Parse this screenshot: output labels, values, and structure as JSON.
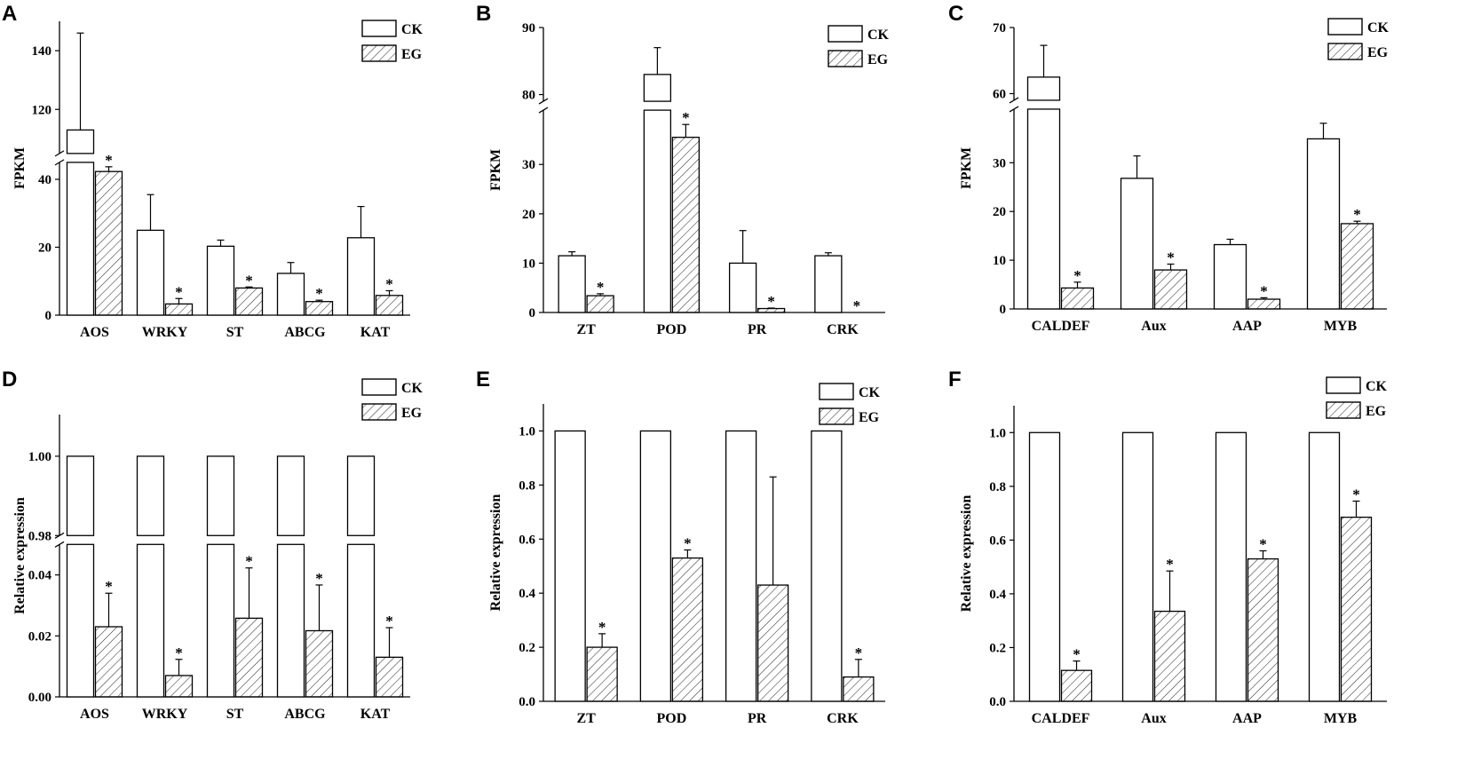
{
  "colors": {
    "ink": "#000000",
    "ck_fill": "#ffffff",
    "eg_hatch": "#222222"
  },
  "legend": {
    "ck": "CK",
    "eg": "EG"
  },
  "chart_data": [
    {
      "panel": "A",
      "type": "bar",
      "ylabel": "FPKM",
      "categories": [
        "AOS",
        "WRKY",
        "ST",
        "ABCG",
        "KAT"
      ],
      "y_break": {
        "lower": [
          0,
          45
        ],
        "upper": [
          105,
          150
        ]
      },
      "y_ticks": [
        0,
        20,
        40,
        120,
        140
      ],
      "y_tick_labels": [
        "0",
        "20",
        "40",
        "120",
        "140"
      ],
      "series": [
        {
          "name": "CK",
          "values": [
            113,
            25,
            20.3,
            12.3,
            22.8
          ],
          "errors": [
            33,
            10.5,
            1.8,
            3.2,
            9.2
          ]
        },
        {
          "name": "EG",
          "values": [
            42.3,
            3.3,
            8,
            4,
            5.8
          ],
          "errors": [
            1.4,
            1.6,
            0.3,
            0.4,
            1.4
          ]
        }
      ],
      "significance": [
        "*",
        "*",
        "*",
        "*",
        "*"
      ]
    },
    {
      "panel": "B",
      "type": "bar",
      "ylabel": "FPKM",
      "categories": [
        "ZT",
        "POD",
        "PR",
        "CRK"
      ],
      "y_break": {
        "lower": [
          0,
          41
        ],
        "upper": [
          79,
          90
        ]
      },
      "y_ticks": [
        0,
        10,
        20,
        30,
        80,
        90
      ],
      "y_tick_labels": [
        "0",
        "10",
        "20",
        "30",
        "80",
        "90"
      ],
      "series": [
        {
          "name": "CK",
          "values": [
            11.5,
            83,
            10,
            11.5
          ],
          "errors": [
            0.8,
            4,
            6.6,
            0.6
          ]
        },
        {
          "name": "EG",
          "values": [
            3.4,
            35.5,
            0.8,
            0
          ],
          "errors": [
            0.4,
            2.6,
            0.1,
            0
          ]
        }
      ],
      "significance": [
        "*",
        "*",
        "*",
        "*"
      ]
    },
    {
      "panel": "C",
      "type": "bar",
      "ylabel": "FPKM",
      "categories": [
        "CALDEF",
        "Aux",
        "AAP",
        "MYB"
      ],
      "y_break": {
        "lower": [
          0,
          41
        ],
        "upper": [
          59,
          70
        ]
      },
      "y_ticks": [
        0,
        10,
        20,
        30,
        60,
        70
      ],
      "y_tick_labels": [
        "0",
        "10",
        "20",
        "30",
        "60",
        "70"
      ],
      "series": [
        {
          "name": "CK",
          "values": [
            62.5,
            26.8,
            13.2,
            34.9
          ],
          "errors": [
            4.8,
            4.6,
            1.1,
            3.2
          ]
        },
        {
          "name": "EG",
          "values": [
            4.3,
            8,
            2,
            17.5
          ],
          "errors": [
            1.2,
            1.2,
            0.3,
            0.5
          ]
        }
      ],
      "significance": [
        "*",
        "*",
        "*",
        "*"
      ]
    },
    {
      "panel": "D",
      "type": "bar",
      "ylabel": "Relative expression",
      "categories": [
        "AOS",
        "WRKY",
        "ST",
        "ABCG",
        "KAT"
      ],
      "y_break": {
        "lower": [
          0,
          0.05
        ],
        "upper": [
          0.98,
          1.0105
        ]
      },
      "y_ticks": [
        0,
        0.02,
        0.04,
        0.98,
        1.0
      ],
      "y_tick_labels": [
        "0.00",
        "0.02",
        "0.04",
        "0.98",
        "1.00"
      ],
      "series": [
        {
          "name": "CK",
          "values": [
            1,
            1,
            1,
            1,
            1
          ],
          "errors": [
            0,
            0,
            0,
            0,
            0
          ]
        },
        {
          "name": "EG",
          "values": [
            0.023,
            0.007,
            0.0258,
            0.0217,
            0.013
          ],
          "errors": [
            0.011,
            0.0053,
            0.0165,
            0.015,
            0.0097
          ]
        }
      ],
      "significance": [
        "*",
        "*",
        "*",
        "*",
        "*"
      ]
    },
    {
      "panel": "E",
      "type": "bar",
      "ylabel": "Relative expression",
      "categories": [
        "ZT",
        "POD",
        "PR",
        "CRK"
      ],
      "ylim": [
        0,
        1.1
      ],
      "y_ticks": [
        0,
        0.2,
        0.4,
        0.6,
        0.8,
        1.0
      ],
      "y_tick_labels": [
        "0.0",
        "0.2",
        "0.4",
        "0.6",
        "0.8",
        "1.0"
      ],
      "series": [
        {
          "name": "CK",
          "values": [
            1,
            1,
            1,
            1
          ],
          "errors": [
            0,
            0,
            0,
            0
          ]
        },
        {
          "name": "EG",
          "values": [
            0.2,
            0.53,
            0.43,
            0.09
          ],
          "errors": [
            0.05,
            0.03,
            0.4,
            0.065
          ]
        }
      ],
      "significance": [
        "*",
        "*",
        "",
        "*"
      ]
    },
    {
      "panel": "F",
      "type": "bar",
      "ylabel": "Relative expression",
      "categories": [
        "CALDEF",
        "Aux",
        "AAP",
        "MYB"
      ],
      "ylim": [
        0,
        1.1
      ],
      "y_ticks": [
        0,
        0.2,
        0.4,
        0.6,
        0.8,
        1.0
      ],
      "y_tick_labels": [
        "0.0",
        "0.2",
        "0.4",
        "0.6",
        "0.8",
        "1.0"
      ],
      "series": [
        {
          "name": "CK",
          "values": [
            1,
            1,
            1,
            1
          ],
          "errors": [
            0,
            0,
            0,
            0
          ]
        },
        {
          "name": "EG",
          "values": [
            0.115,
            0.335,
            0.53,
            0.685
          ],
          "errors": [
            0.035,
            0.15,
            0.03,
            0.06
          ]
        }
      ],
      "significance": [
        "*",
        "*",
        "*",
        "*"
      ]
    }
  ]
}
